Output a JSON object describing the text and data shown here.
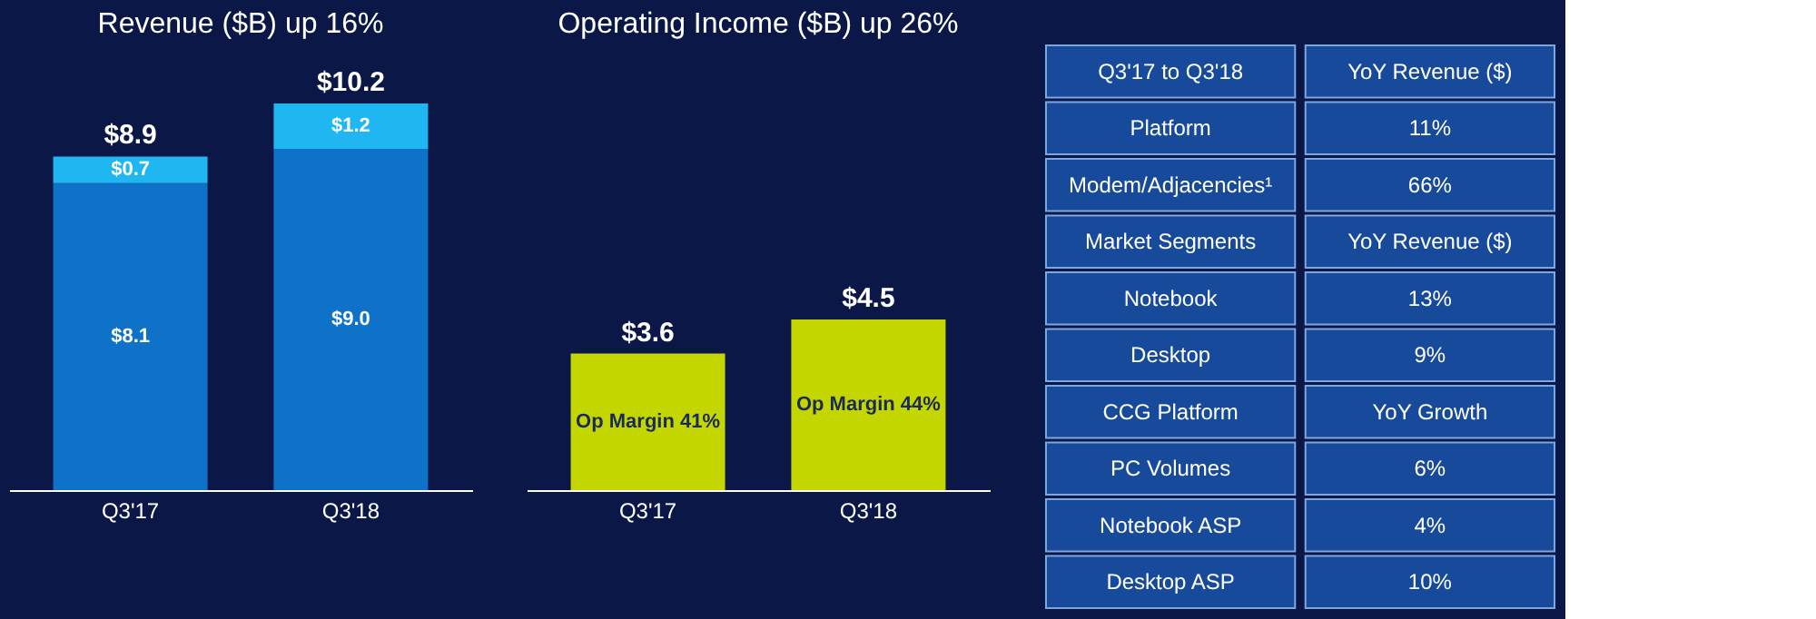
{
  "chart_data": [
    {
      "type": "bar",
      "title": "Revenue ($B) up 16%",
      "categories": [
        "Q3'17",
        "Q3'18"
      ],
      "stacked": true,
      "series": [
        {
          "color": "#0f72c9",
          "values": [
            8.1,
            9.0
          ],
          "value_labels": [
            "$8.1",
            "$9.0"
          ]
        },
        {
          "color": "#1fb6f2",
          "values": [
            0.7,
            1.2
          ],
          "value_labels": [
            "$0.7",
            "$1.2"
          ]
        }
      ],
      "totals": [
        "$8.9",
        "$10.2"
      ]
    },
    {
      "type": "bar",
      "title": "Operating Income ($B) up 26%",
      "categories": [
        "Q3'17",
        "Q3'18"
      ],
      "series": [
        {
          "color": "#c4d600",
          "values": [
            3.6,
            4.5
          ],
          "value_labels": [
            "$3.6",
            "$4.5"
          ]
        }
      ],
      "annotations": [
        "Op Margin 41%",
        "Op Margin 44%"
      ]
    },
    {
      "type": "other",
      "annotations": [
        "Q3'17 to Q3'18",
        "YoY Revenue ($)",
        "Platform",
        "11%",
        "Modem/Adjacencies¹",
        "66%",
        "Market Segments",
        "YoY Revenue ($)",
        "Notebook",
        "13%",
        "Desktop",
        "9%",
        "CCG Platform",
        "YoY Growth",
        "PC Volumes",
        "6%",
        "Notebook ASP",
        "4%",
        "Desktop ASP",
        "10%"
      ]
    }
  ]
}
